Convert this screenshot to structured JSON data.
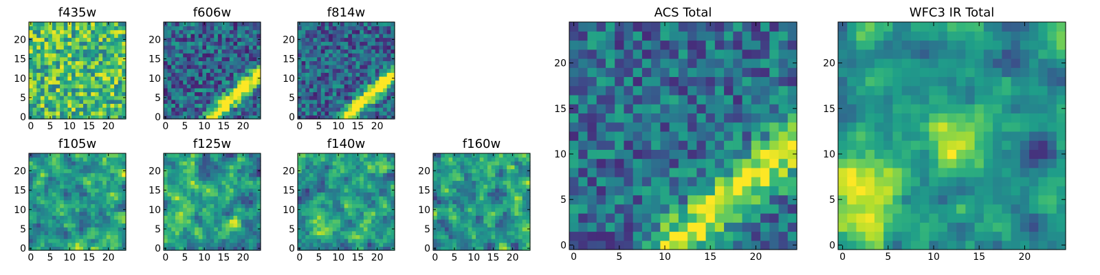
{
  "figure": {
    "kind": "grid of pixel-intensity images",
    "colormap": "viridis"
  },
  "chart_data": [
    {
      "type": "heatmap",
      "title": "f435w",
      "xlim": [
        0,
        24
      ],
      "ylim": [
        0,
        24
      ],
      "xticks": [
        "0",
        "5",
        "10",
        "15",
        "20"
      ],
      "yticks": [
        "0",
        "5",
        "10",
        "15",
        "20"
      ],
      "texture": "uniform-noise",
      "seed": 11,
      "base": 0.68,
      "noise": 0.3,
      "features": []
    },
    {
      "type": "heatmap",
      "title": "f606w",
      "xlim": [
        0,
        24
      ],
      "ylim": [
        0,
        24
      ],
      "xticks": [
        "0",
        "5",
        "10",
        "15",
        "20"
      ],
      "yticks": [
        "0",
        "5",
        "10",
        "15",
        "20"
      ],
      "texture": "noise-with-diagonal-streak",
      "seed": 23,
      "base": 0.33,
      "noise": 0.26,
      "features": [
        {
          "kind": "streak",
          "from": [
            12,
            0
          ],
          "to": [
            24,
            11
          ],
          "amp": 0.85,
          "width": 1.3
        }
      ]
    },
    {
      "type": "heatmap",
      "title": "f814w",
      "xlim": [
        0,
        24
      ],
      "ylim": [
        0,
        24
      ],
      "xticks": [
        "0",
        "5",
        "10",
        "15",
        "20"
      ],
      "yticks": [
        "0",
        "5",
        "10",
        "15",
        "20"
      ],
      "texture": "noise-with-diagonal-streak",
      "seed": 37,
      "base": 0.32,
      "noise": 0.24,
      "features": [
        {
          "kind": "streak",
          "from": [
            12,
            0
          ],
          "to": [
            24,
            11
          ],
          "amp": 0.85,
          "width": 1.3
        }
      ]
    },
    {
      "type": "heatmap",
      "title": "f105w",
      "xlim": [
        0,
        24
      ],
      "ylim": [
        0,
        24
      ],
      "xticks": [
        "0",
        "5",
        "10",
        "15",
        "20"
      ],
      "yticks": [
        "0",
        "5",
        "10",
        "15",
        "20"
      ],
      "texture": "smooth-noise",
      "seed": 41,
      "base": 0.55,
      "noise": 0.32,
      "features": []
    },
    {
      "type": "heatmap",
      "title": "f125w",
      "xlim": [
        0,
        24
      ],
      "ylim": [
        0,
        24
      ],
      "xticks": [
        "0",
        "5",
        "10",
        "15",
        "20"
      ],
      "yticks": [
        "0",
        "5",
        "10",
        "15",
        "20"
      ],
      "texture": "smooth-noise",
      "seed": 53,
      "base": 0.56,
      "noise": 0.32,
      "features": []
    },
    {
      "type": "heatmap",
      "title": "f140w",
      "xlim": [
        0,
        24
      ],
      "ylim": [
        0,
        24
      ],
      "xticks": [
        "0",
        "5",
        "10",
        "15",
        "20"
      ],
      "yticks": [
        "0",
        "5",
        "10",
        "15",
        "20"
      ],
      "texture": "smooth-noise",
      "seed": 67,
      "base": 0.56,
      "noise": 0.32,
      "features": []
    },
    {
      "type": "heatmap",
      "title": "f160w",
      "xlim": [
        0,
        24
      ],
      "ylim": [
        0,
        24
      ],
      "xticks": [
        "0",
        "5",
        "10",
        "15",
        "20"
      ],
      "yticks": [
        "0",
        "5",
        "10",
        "15",
        "20"
      ],
      "texture": "smooth-noise",
      "seed": 79,
      "base": 0.55,
      "noise": 0.32,
      "features": []
    },
    {
      "type": "heatmap",
      "title": "ACS Total",
      "xlim": [
        0,
        24
      ],
      "ylim": [
        0,
        24
      ],
      "xticks": [
        "0",
        "5",
        "10",
        "15",
        "20"
      ],
      "yticks": [
        "0",
        "5",
        "10",
        "15",
        "20"
      ],
      "texture": "noise-with-diagonal-streak",
      "seed": 97,
      "base": 0.36,
      "noise": 0.24,
      "features": [
        {
          "kind": "streak",
          "from": [
            11,
            0
          ],
          "to": [
            24,
            11
          ],
          "amp": 0.65,
          "width": 1.7
        }
      ]
    },
    {
      "type": "heatmap",
      "title": "WFC3 IR Total",
      "xlim": [
        0,
        24
      ],
      "ylim": [
        0,
        24
      ],
      "xticks": [
        "0",
        "5",
        "10",
        "15",
        "20"
      ],
      "yticks": [
        "0",
        "5",
        "10",
        "15",
        "20"
      ],
      "texture": "smooth-noise-with-blobs",
      "seed": 113,
      "base": 0.52,
      "noise": 0.22,
      "features": [
        {
          "kind": "blob",
          "center": [
            1.5,
            5.5
          ],
          "amp": 0.45,
          "sigma": 3.5
        },
        {
          "kind": "blob",
          "center": [
            12.5,
            11.5
          ],
          "amp": 0.4,
          "sigma": 2.0
        },
        {
          "kind": "blob",
          "center": [
            21.5,
            10.5
          ],
          "amp": -0.5,
          "sigma": 1.3
        },
        {
          "kind": "blob",
          "center": [
            18.5,
            20.5
          ],
          "amp": -0.3,
          "sigma": 1.2
        }
      ]
    }
  ]
}
